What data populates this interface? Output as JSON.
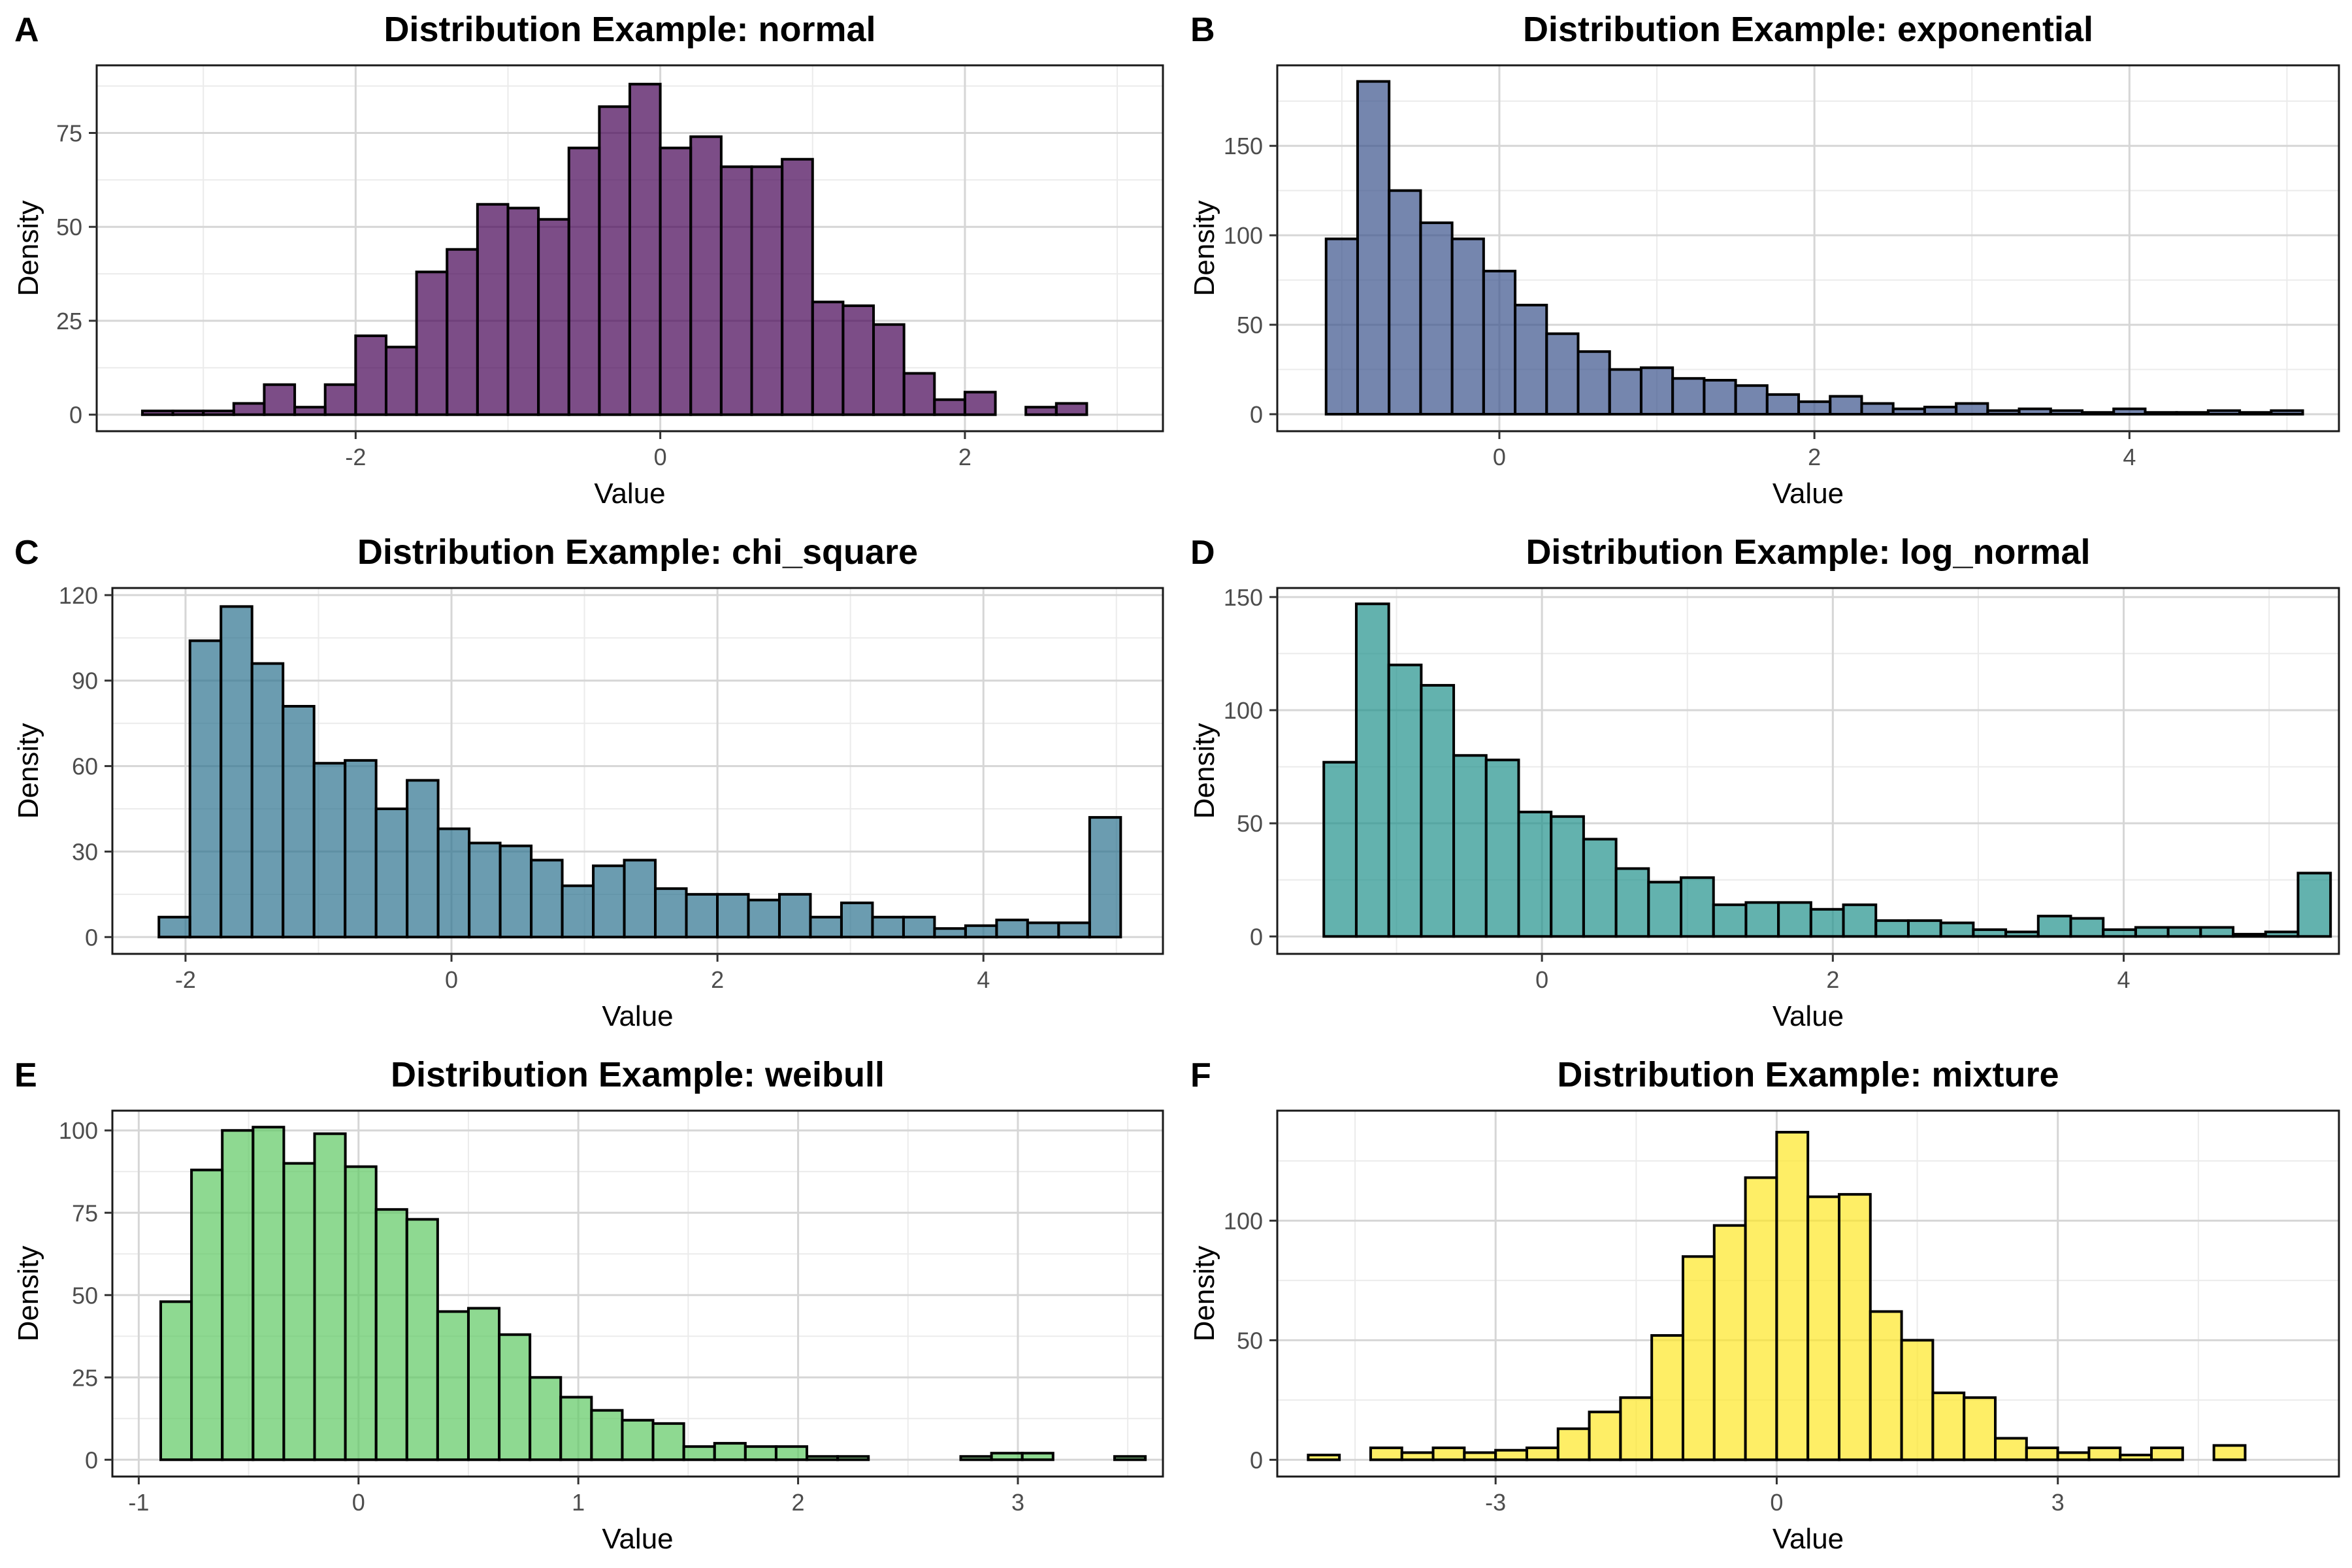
{
  "chart_data": [
    {
      "tag": "A",
      "type": "bar",
      "title": "Distribution Example: normal",
      "xlabel": "Value",
      "ylabel": "Density",
      "fill": "#440154",
      "bin_start": -3.4,
      "bin_width": 0.2,
      "xlim": [
        -3.7,
        3.3
      ],
      "ylim": [
        -4.4,
        93
      ],
      "xticks": [
        -2,
        0,
        2
      ],
      "xtick_labels": [
        "-2",
        "0",
        "2"
      ],
      "yticks": [
        0,
        25,
        50,
        75
      ],
      "ytick_labels": [
        "0",
        "25",
        "50",
        "75"
      ],
      "values": [
        1,
        1,
        1,
        3,
        8,
        2,
        8,
        21,
        18,
        38,
        44,
        56,
        55,
        52,
        71,
        82,
        88,
        71,
        74,
        66,
        66,
        68,
        30,
        29,
        24,
        11,
        4,
        6,
        0,
        2,
        3
      ]
    },
    {
      "tag": "B",
      "type": "bar",
      "title": "Distribution Example: exponential",
      "xlabel": "Value",
      "ylabel": "Density",
      "fill": "#3b528b",
      "bin_start": -1.1,
      "bin_width": 0.2,
      "xlim": [
        -1.41,
        5.33
      ],
      "ylim": [
        -9.5,
        195
      ],
      "xticks": [
        0,
        2,
        4
      ],
      "xtick_labels": [
        "0",
        "2",
        "4"
      ],
      "yticks": [
        0,
        50,
        100,
        150
      ],
      "ytick_labels": [
        "0",
        "50",
        "100",
        "150"
      ],
      "values": [
        98,
        186,
        125,
        107,
        98,
        80,
        61,
        45,
        35,
        25,
        26,
        20,
        19,
        16,
        11,
        7,
        10,
        6,
        3,
        4,
        6,
        2,
        3,
        2,
        1,
        3,
        1,
        1,
        2,
        1,
        2
      ]
    },
    {
      "tag": "C",
      "type": "bar",
      "title": "Distribution Example: chi_square",
      "xlabel": "Value",
      "ylabel": "Density",
      "fill": "#2c728e",
      "bin_start": -2.2,
      "bin_width": 0.2333,
      "xlim": [
        -2.55,
        5.35
      ],
      "ylim": [
        -5.9,
        122.5
      ],
      "xticks": [
        -2,
        0,
        2,
        4
      ],
      "xtick_labels": [
        "-2",
        "0",
        "2",
        "4"
      ],
      "yticks": [
        0,
        30,
        60,
        90,
        120
      ],
      "ytick_labels": [
        "0",
        "30",
        "60",
        "90",
        "120"
      ],
      "values": [
        7,
        104,
        116,
        96,
        81,
        61,
        62,
        45,
        55,
        38,
        33,
        32,
        27,
        18,
        25,
        27,
        17,
        15,
        15,
        13,
        15,
        7,
        12,
        7,
        7,
        3,
        4,
        6,
        5,
        5,
        42
      ]
    },
    {
      "tag": "D",
      "type": "bar",
      "title": "Distribution Example: log_normal",
      "xlabel": "Value",
      "ylabel": "Density",
      "fill": "#21918c",
      "bin_start": -1.5,
      "bin_width": 0.2233,
      "xlim": [
        -1.82,
        5.48
      ],
      "ylim": [
        -7.7,
        154
      ],
      "xticks": [
        0,
        2,
        4
      ],
      "xtick_labels": [
        "0",
        "2",
        "4"
      ],
      "yticks": [
        0,
        50,
        100,
        150
      ],
      "ytick_labels": [
        "0",
        "50",
        "100",
        "150"
      ],
      "values": [
        77,
        147,
        120,
        111,
        80,
        78,
        55,
        53,
        43,
        30,
        24,
        26,
        14,
        15,
        15,
        12,
        14,
        7,
        7,
        6,
        3,
        2,
        9,
        8,
        3,
        4,
        4,
        4,
        1,
        2,
        28
      ]
    },
    {
      "tag": "E",
      "type": "bar",
      "title": "Distribution Example: weibull",
      "xlabel": "Value",
      "ylabel": "Density",
      "fill": "#5ec962",
      "bin_start": -0.9,
      "bin_width": 0.14,
      "xlim": [
        -1.12,
        3.66
      ],
      "ylim": [
        -5.1,
        106
      ],
      "xticks": [
        -1,
        0,
        1,
        2,
        3
      ],
      "xtick_labels": [
        "-1",
        "0",
        "1",
        "2",
        "3"
      ],
      "yticks": [
        0,
        25,
        50,
        75,
        100
      ],
      "ytick_labels": [
        "0",
        "25",
        "50",
        "75",
        "100"
      ],
      "values": [
        48,
        88,
        100,
        101,
        90,
        99,
        89,
        76,
        73,
        45,
        46,
        38,
        25,
        19,
        15,
        12,
        11,
        4,
        5,
        4,
        4,
        1,
        1,
        0,
        0,
        0,
        1,
        2,
        2,
        0,
        0,
        1
      ]
    },
    {
      "tag": "F",
      "type": "bar",
      "title": "Distribution Example: mixture",
      "xlabel": "Value",
      "ylabel": "Density",
      "fill": "#fde725",
      "bin_start": -5.0,
      "bin_width": 0.3333,
      "xlim": [
        -5.33,
        6.0
      ],
      "ylim": [
        -7.0,
        146
      ],
      "xticks": [
        -3,
        0,
        3
      ],
      "xtick_labels": [
        "-3",
        "0",
        "3"
      ],
      "yticks": [
        0,
        50,
        100
      ],
      "ytick_labels": [
        "0",
        "50",
        "100"
      ],
      "values": [
        2,
        0,
        5,
        3,
        5,
        3,
        4,
        5,
        13,
        20,
        26,
        52,
        85,
        98,
        118,
        137,
        110,
        111,
        62,
        50,
        28,
        26,
        9,
        5,
        3,
        5,
        2,
        5,
        0,
        6
      ]
    }
  ]
}
